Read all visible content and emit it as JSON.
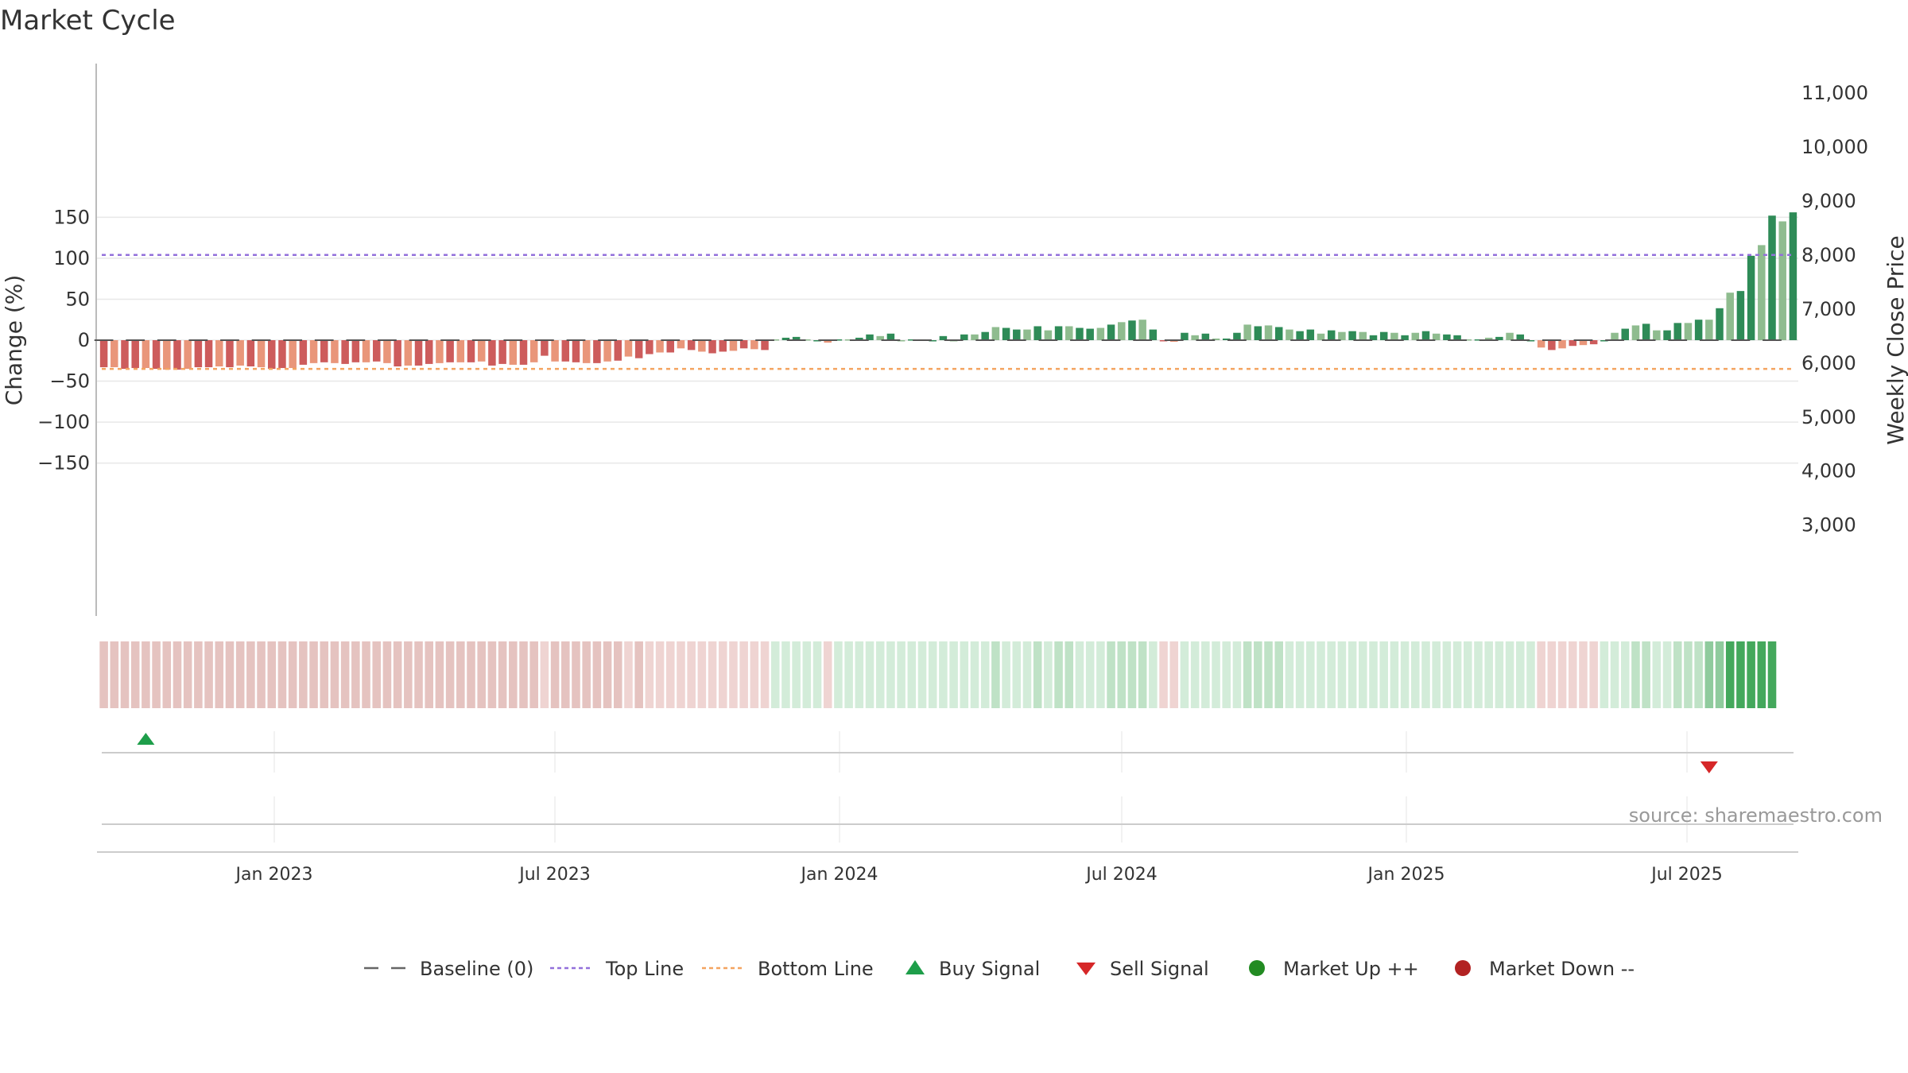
{
  "title": "Market Cycle",
  "source": "source: sharemaestro.com",
  "colors": {
    "down_strong": "#cd5c5c",
    "down_light": "#e9967a",
    "up_strong": "#2e8b57",
    "up_light": "#8fbc8f",
    "top_line": "#9370db",
    "bottom_line": "#f4a460",
    "baseline": "#555555",
    "buy": "#1e9e4a",
    "sell": "#d62728",
    "market_up": "#228b22",
    "market_down": "#b22222"
  },
  "legend": [
    {
      "label": "Baseline (0)",
      "marker": "dash-line",
      "color": "#666666"
    },
    {
      "label": "Top Line",
      "marker": "dotted-line",
      "color": "#9370db"
    },
    {
      "label": "Bottom Line",
      "marker": "dotted-line",
      "color": "#f4a460"
    },
    {
      "label": "Buy Signal",
      "marker": "triangle-up",
      "color": "#1e9e4a"
    },
    {
      "label": "Sell Signal",
      "marker": "triangle-down",
      "color": "#d62728"
    },
    {
      "label": "Market Up ++",
      "marker": "circle",
      "color": "#228b22"
    },
    {
      "label": "Market Down --",
      "marker": "circle",
      "color": "#b22222"
    }
  ],
  "chart_data": {
    "type": "bar",
    "title": "Market Cycle",
    "ylabel": "Change (%)",
    "y2label": "Weekly Close Price",
    "ylim": [
      -170,
      170
    ],
    "yticks": [
      "150",
      "100",
      "50",
      "0",
      "−50",
      "−100",
      "−150"
    ],
    "y2lim": [
      2200,
      11400
    ],
    "y2ticks": [
      "11,000",
      "10,000",
      "9,000",
      "8,000",
      "7,000",
      "6,000",
      "5,000",
      "4,000",
      "3,000"
    ],
    "x_start": "2022-09-19",
    "x_step_days": 7,
    "xticks": [
      "Jan 2023",
      "Jul 2023",
      "Jan 2024",
      "Jul 2024",
      "Jan 2025",
      "Jul 2025"
    ],
    "top_line": 104,
    "bottom_line": -35,
    "baseline": 0,
    "values": [
      -33,
      -33,
      -35,
      -34,
      -34,
      -35,
      -36,
      -36,
      -35,
      -33,
      -33,
      -32,
      -33,
      -31,
      -32,
      -33,
      -35,
      -34,
      -34,
      -30,
      -28,
      -27,
      -28,
      -29,
      -27,
      -27,
      -26,
      -28,
      -32,
      -31,
      -31,
      -29,
      -28,
      -27,
      -27,
      -27,
      -26,
      -31,
      -29,
      -30,
      -30,
      -27,
      -19,
      -26,
      -26,
      -27,
      -28,
      -28,
      -26,
      -25,
      -20,
      -22,
      -17,
      -15,
      -15,
      -10,
      -12,
      -14,
      -16,
      -14,
      -13,
      -10,
      -11,
      -12,
      1,
      3,
      4,
      1,
      0,
      -3,
      1,
      1,
      3,
      7,
      5,
      8,
      0,
      1,
      1,
      0,
      5,
      0,
      7,
      7,
      10,
      16,
      15,
      13,
      13,
      17,
      12,
      17,
      17,
      15,
      14,
      15,
      19,
      22,
      24,
      25,
      13,
      -1,
      -2,
      9,
      6,
      8,
      2,
      2,
      9,
      19,
      17,
      18,
      16,
      13,
      11,
      13,
      8,
      12,
      10,
      11,
      10,
      6,
      10,
      9,
      6,
      9,
      11,
      8,
      7,
      6,
      1,
      1,
      3,
      4,
      9,
      7,
      0,
      -9,
      -12,
      -10,
      -7,
      -6,
      -5,
      0,
      9,
      14,
      18,
      20,
      12,
      12,
      21,
      21,
      25,
      25,
      39,
      58,
      60,
      103,
      116,
      152,
      145,
      156
    ],
    "shade": [
      2,
      2,
      2,
      2,
      2,
      2,
      2,
      2,
      2,
      2,
      2,
      2,
      2,
      2,
      2,
      2,
      2,
      2,
      2,
      2,
      2,
      2,
      2,
      2,
      2,
      2,
      2,
      2,
      2,
      2,
      2,
      2,
      2,
      2,
      2,
      2,
      2,
      2,
      2,
      2,
      2,
      2,
      2,
      2,
      2,
      2,
      2,
      2,
      2,
      2,
      1,
      1,
      1,
      1,
      1,
      1,
      1,
      1,
      1,
      1,
      1,
      1,
      1,
      1,
      1,
      1,
      1,
      1,
      1,
      1,
      1,
      1,
      1,
      1,
      1,
      1,
      1,
      1,
      1,
      1,
      1,
      1,
      1,
      1,
      1,
      1,
      1,
      1,
      1,
      1,
      1,
      1,
      1,
      1,
      1,
      1,
      1,
      1,
      1,
      1,
      1,
      1,
      1,
      1,
      1,
      1,
      1,
      1,
      1,
      1,
      1,
      1,
      1,
      1,
      1,
      1,
      1,
      1,
      1,
      1,
      1,
      1,
      1,
      1,
      1,
      1,
      1,
      1,
      1,
      1,
      1,
      1,
      1,
      1,
      1,
      1,
      1,
      1,
      1,
      1,
      1,
      1,
      1,
      1,
      1,
      1,
      1,
      1,
      1,
      1,
      1,
      1,
      1,
      2,
      2,
      3,
      3,
      3,
      3,
      3
    ],
    "buy_signals": [
      4
    ],
    "sell_signals": [
      153
    ]
  }
}
